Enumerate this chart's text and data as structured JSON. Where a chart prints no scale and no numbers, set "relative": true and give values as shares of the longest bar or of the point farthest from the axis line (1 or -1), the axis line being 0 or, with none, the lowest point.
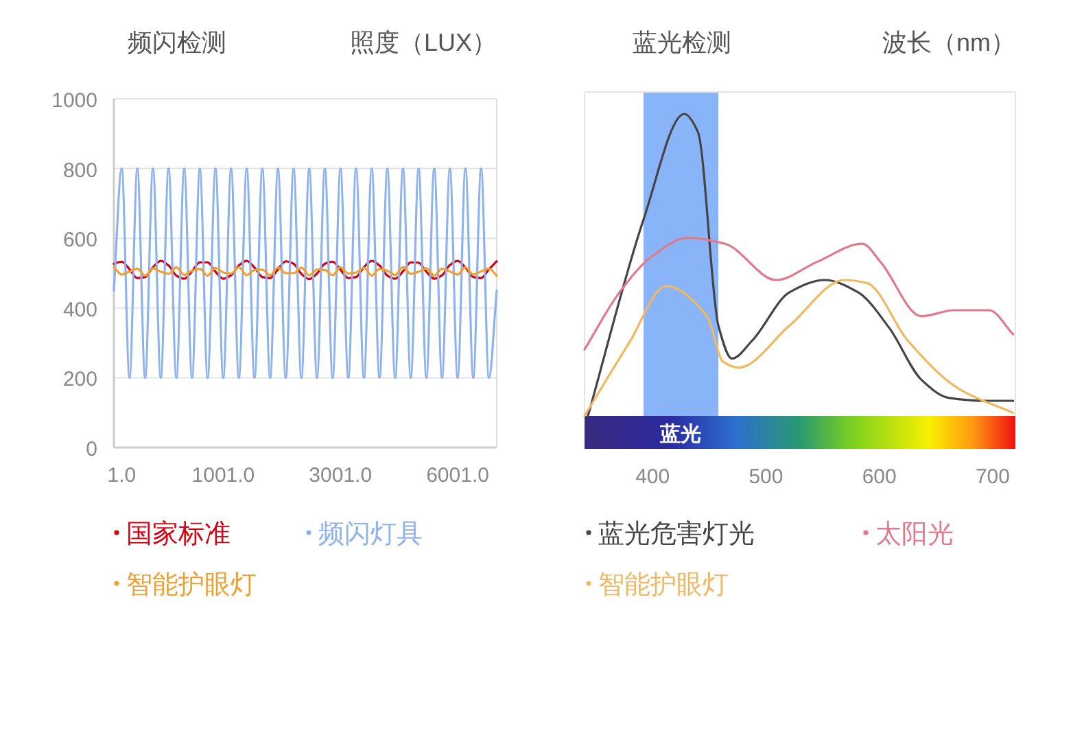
{
  "chart_data": [
    {
      "type": "line",
      "title": "频闪检测",
      "ylabel": "照度（LUX）",
      "ylim": [
        0,
        1000
      ],
      "yticks": [
        0,
        200,
        400,
        600,
        800,
        1000
      ],
      "grid": "y",
      "legend": "bottom",
      "categories": [
        null,
        "1.0",
        null,
        null,
        null,
        null,
        null,
        null,
        null,
        null,
        null,
        null,
        null,
        null,
        "1001.0",
        null,
        null,
        null,
        null,
        null,
        null,
        null,
        null,
        null,
        null,
        null,
        null,
        null,
        null,
        "3001.0",
        null,
        null,
        null,
        null,
        null,
        null,
        null,
        null,
        null,
        null,
        null,
        null,
        null,
        null,
        "6001.0",
        null,
        null,
        null,
        null,
        null
      ],
      "series": [
        {
          "name": "国家标准",
          "color": "#d8000f",
          "values": [
            527,
            533,
            511,
            486,
            489,
            517,
            535,
            522,
            493,
            484,
            505,
            531,
            531,
            504,
            484,
            494,
            522,
            535,
            516,
            489,
            486,
            511,
            534,
            527,
            498,
            483,
            499,
            527,
            533,
            510,
            486,
            489,
            517,
            535,
            522,
            493,
            484,
            505,
            531,
            530,
            504,
            484,
            494,
            523,
            535,
            516,
            489,
            486,
            511,
            534
          ]
        },
        {
          "name": "频闪灯具",
          "color": "#8db2ee",
          "values": [
            450,
            800,
            200,
            800,
            200,
            800,
            200,
            800,
            200,
            800,
            200,
            800,
            200,
            800,
            200,
            800,
            200,
            800,
            200,
            800,
            200,
            800,
            200,
            800,
            200,
            800,
            200,
            800,
            200,
            800,
            200,
            800,
            200,
            800,
            200,
            800,
            200,
            800,
            200,
            800,
            200,
            800,
            200,
            800,
            200,
            800,
            200,
            800,
            200,
            450
          ]
        },
        {
          "name": "智能护眼灯",
          "color": "#f0a030",
          "values": [
            517,
            496,
            505,
            513,
            493,
            514,
            504,
            498,
            517,
            495,
            507,
            512,
            493,
            515,
            502,
            499,
            517,
            494,
            509,
            510,
            494,
            516,
            500,
            500,
            516,
            494,
            510,
            509,
            494,
            517,
            499,
            502,
            515,
            493,
            512,
            507,
            495,
            517,
            498,
            504,
            514,
            493,
            513,
            505,
            496,
            517,
            496,
            505,
            513,
            493
          ]
        }
      ]
    },
    {
      "type": "line",
      "title": "蓝光检测",
      "xlabel": "波长（nm）",
      "relative": true,
      "xlim": [
        340,
        720
      ],
      "xticks": [
        400,
        500,
        600,
        700
      ],
      "legend": "bottom",
      "bands": [
        {
          "axis": "x",
          "from": 392,
          "to": 458,
          "label": "蓝光",
          "color": "#8ab4f8"
        }
      ],
      "series": [
        {
          "name": "蓝光危害灯光",
          "color": "#444444",
          "x": [
            343,
            392,
            428,
            440,
            458,
            470,
            488,
            521,
            552,
            581,
            609,
            637,
            661,
            694,
            718
          ],
          "values": [
            0,
            0.65,
            1,
            0.94,
            0.3,
            0.19,
            0.25,
            0.41,
            0.45,
            0.41,
            0.29,
            0.12,
            0.06,
            0.05,
            0.05
          ]
        },
        {
          "name": "太阳光",
          "color": "#e07a8a",
          "x": [
            340,
            371,
            400,
            431,
            464,
            509,
            545,
            585,
            601,
            637,
            666,
            697,
            718
          ],
          "values": [
            0.22,
            0.41,
            0.53,
            0.59,
            0.57,
            0.45,
            0.51,
            0.57,
            0.51,
            0.33,
            0.35,
            0.35,
            0.27
          ]
        },
        {
          "name": "智能护眼灯",
          "color": "#f0b860",
          "x": [
            340,
            379,
            412,
            448,
            462,
            476,
            521,
            569,
            589,
            625,
            670,
            718
          ],
          "values": [
            0,
            0.24,
            0.43,
            0.33,
            0.18,
            0.16,
            0.3,
            0.45,
            0.44,
            0.25,
            0.09,
            0.01
          ]
        }
      ]
    }
  ]
}
